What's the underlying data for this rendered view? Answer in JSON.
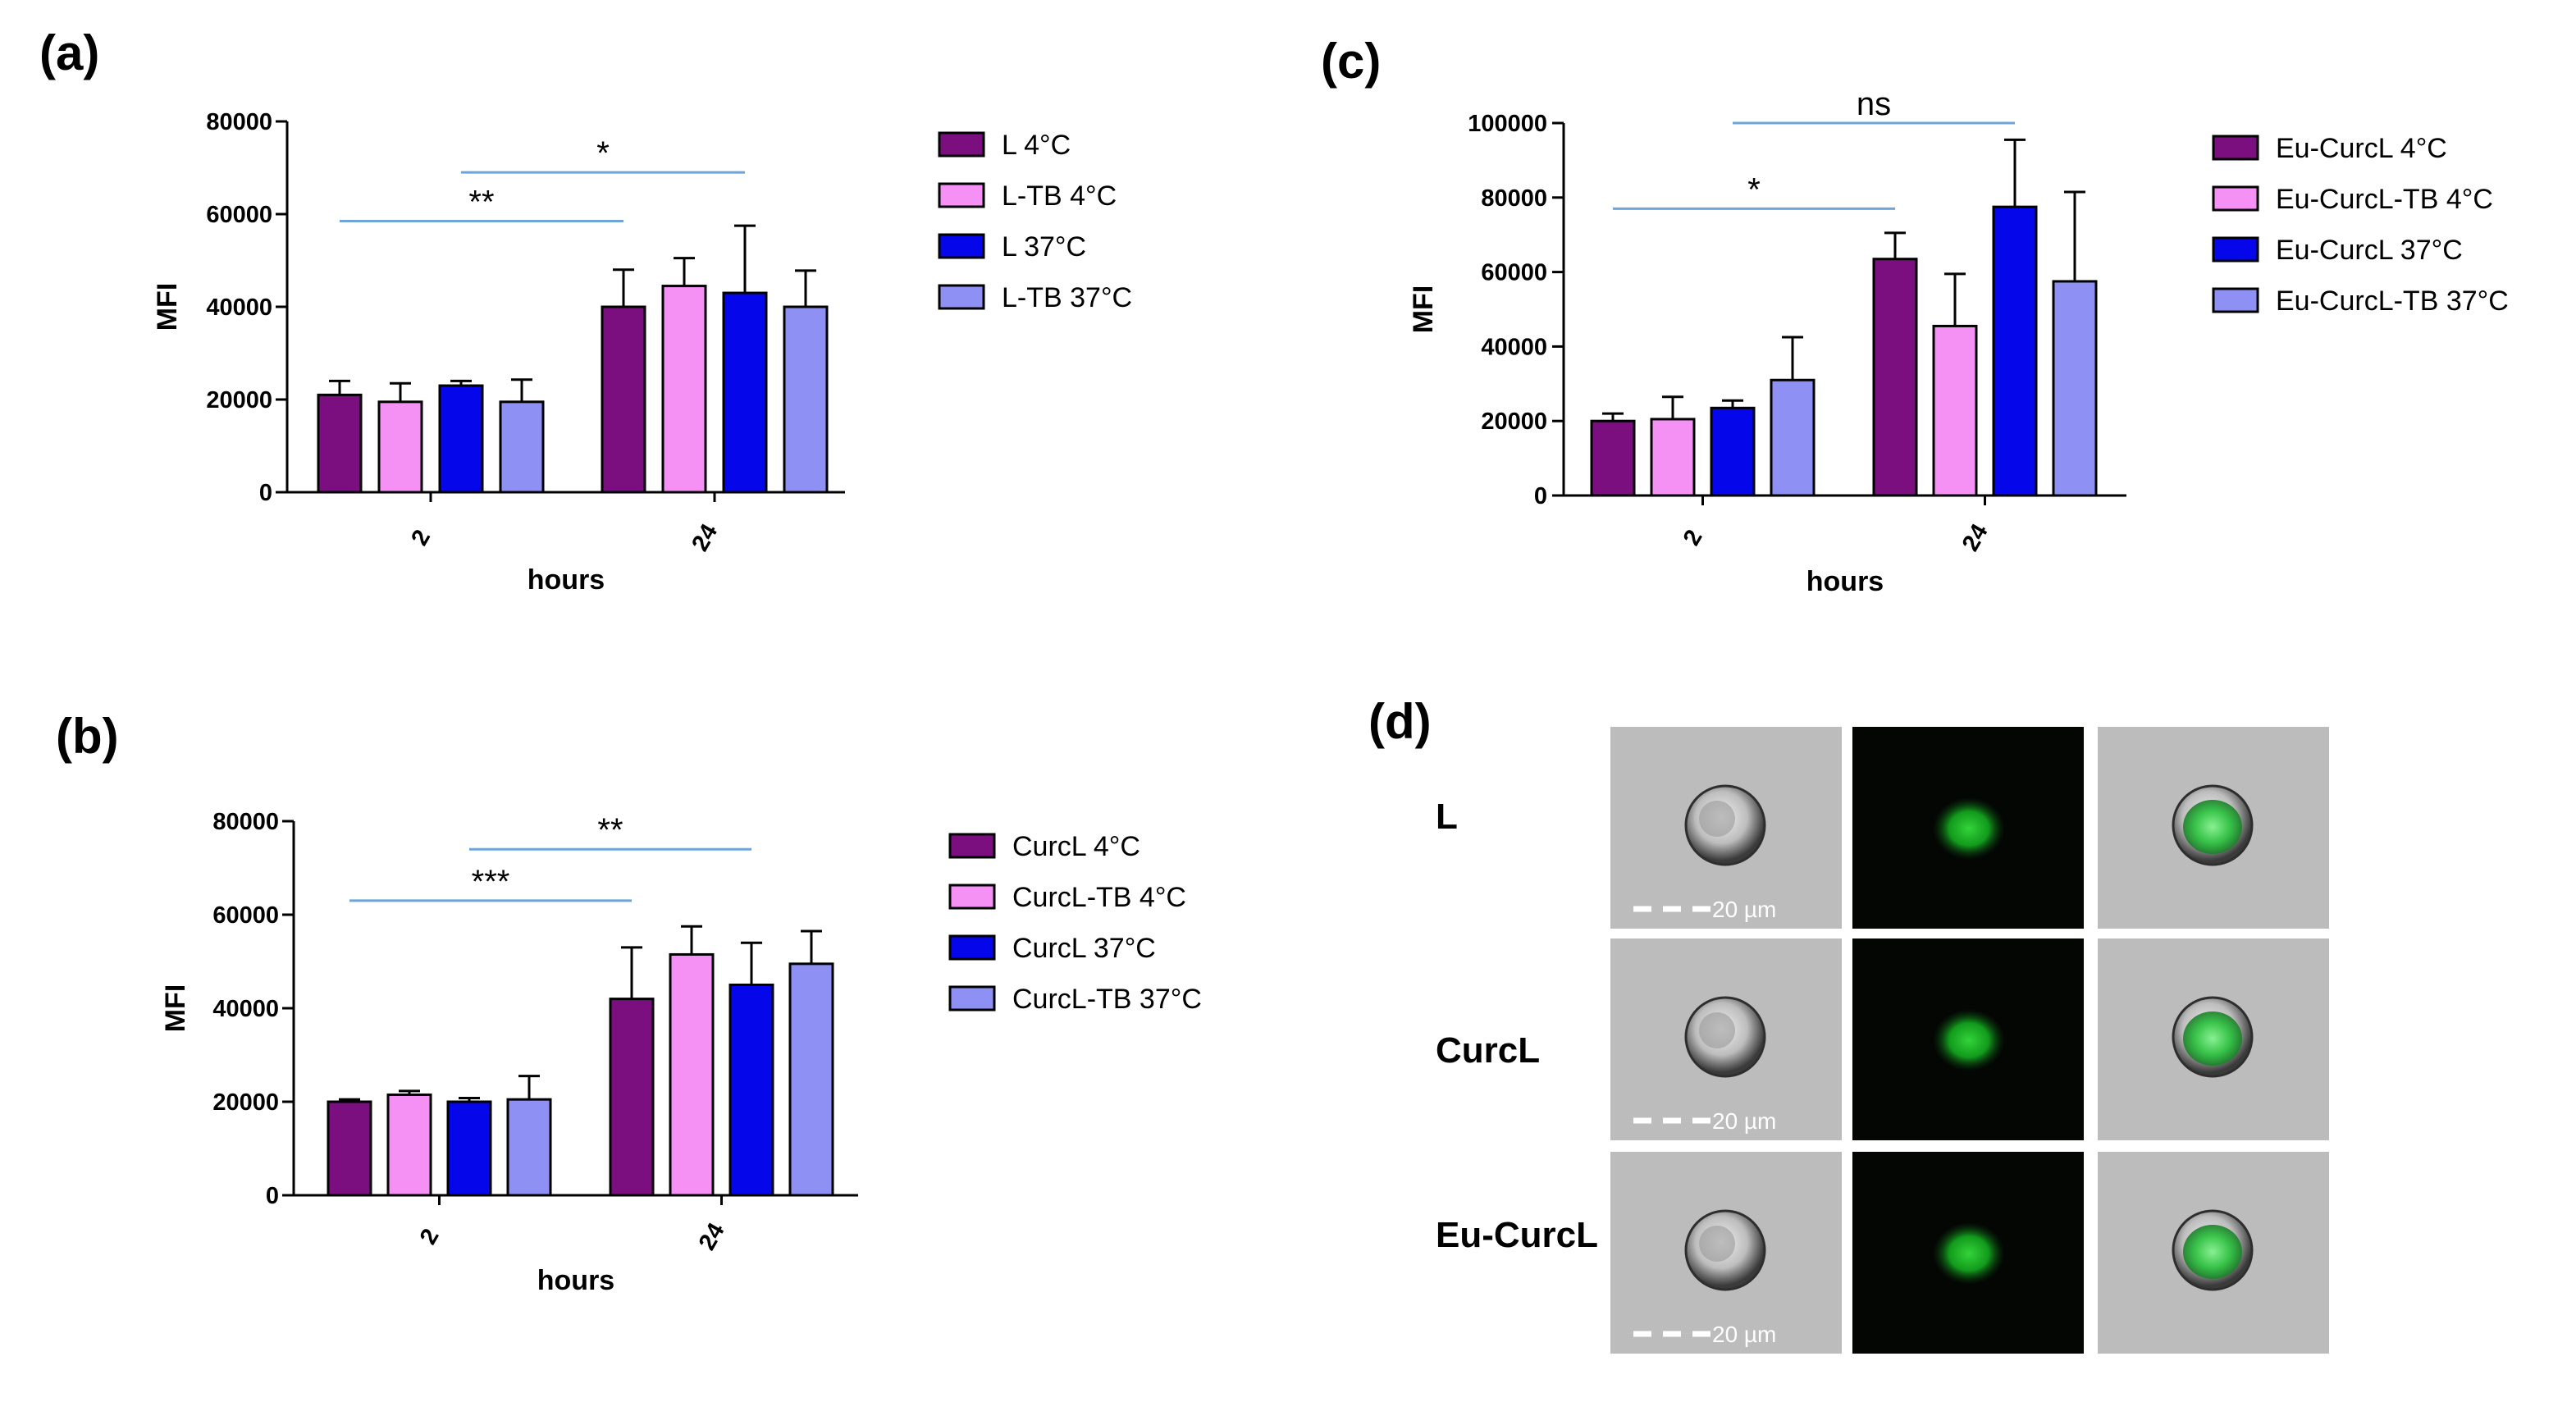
{
  "chart_data": [
    {
      "type": "bar",
      "panel": "(a)",
      "categories": [
        "2",
        "24"
      ],
      "xlabel": "hours",
      "ylabel": "MFI",
      "ylim": [
        0,
        80000
      ],
      "yticks": [
        "0",
        "20000",
        "40000",
        "60000",
        "80000"
      ],
      "series": [
        {
          "name": "L 4°C",
          "values": [
            21000,
            40000
          ],
          "errors": [
            3000,
            8000
          ],
          "color": "#7b0f7f"
        },
        {
          "name": "L-TB 4°C",
          "values": [
            19500,
            44500
          ],
          "errors": [
            4000,
            6000
          ],
          "color": "#f590f5"
        },
        {
          "name": "L 37°C",
          "values": [
            23000,
            43000
          ],
          "errors": [
            1000,
            14500
          ],
          "color": "#0606ea"
        },
        {
          "name": "L-TB 37°C",
          "values": [
            19500,
            40000
          ],
          "errors": [
            4800,
            7800
          ],
          "color": "#8f90f3"
        }
      ],
      "significance": [
        {
          "label": "**",
          "y": 58500,
          "from": "2-1",
          "to": "24-1"
        },
        {
          "label": "*",
          "y": 69000,
          "from": "2-3",
          "to": "24-3"
        }
      ]
    },
    {
      "type": "bar",
      "panel": "(b)",
      "categories": [
        "2",
        "24"
      ],
      "xlabel": "hours",
      "ylabel": "MFI",
      "ylim": [
        0,
        80000
      ],
      "yticks": [
        "0",
        "20000",
        "40000",
        "60000",
        "80000"
      ],
      "series": [
        {
          "name": "CurcL 4°C",
          "values": [
            20000,
            42000
          ],
          "errors": [
            500,
            11000
          ],
          "color": "#7b0f7f"
        },
        {
          "name": "CurcL-TB 4°C",
          "values": [
            21500,
            51500
          ],
          "errors": [
            800,
            6000
          ],
          "color": "#f590f5"
        },
        {
          "name": "CurcL 37°C",
          "values": [
            20000,
            45000
          ],
          "errors": [
            800,
            9000
          ],
          "color": "#0606ea"
        },
        {
          "name": "CurcL-TB 37°C",
          "values": [
            20500,
            49500
          ],
          "errors": [
            5000,
            7000
          ],
          "color": "#8f90f3"
        }
      ],
      "significance": [
        {
          "label": "***",
          "y": 63000,
          "from": "2-1",
          "to": "24-1"
        },
        {
          "label": "**",
          "y": 74000,
          "from": "2-3",
          "to": "24-3"
        }
      ]
    },
    {
      "type": "bar",
      "panel": "(c)",
      "categories": [
        "2",
        "24"
      ],
      "xlabel": "hours",
      "ylabel": "MFI",
      "ylim": [
        0,
        100000
      ],
      "yticks": [
        "0",
        "20000",
        "40000",
        "60000",
        "80000",
        "100000"
      ],
      "series": [
        {
          "name": "Eu-CurcL 4°C",
          "values": [
            20000,
            63500
          ],
          "errors": [
            2000,
            7000
          ],
          "color": "#7b0f7f"
        },
        {
          "name": "Eu-CurcL-TB 4°C",
          "values": [
            20500,
            45500
          ],
          "errors": [
            6000,
            14000
          ],
          "color": "#f590f5"
        },
        {
          "name": "Eu-CurcL 37°C",
          "values": [
            23500,
            77500
          ],
          "errors": [
            2000,
            18000
          ],
          "color": "#0606ea"
        },
        {
          "name": "Eu-CurcL-TB 37°C",
          "values": [
            31000,
            57500
          ],
          "errors": [
            11500,
            24000
          ],
          "color": "#8f90f3"
        }
      ],
      "significance": [
        {
          "label": "*",
          "y": 77000,
          "from": "2-1",
          "to": "24-1"
        },
        {
          "label": "ns",
          "y": 100000,
          "from": "2-3",
          "to": "24-3"
        }
      ]
    }
  ],
  "imaging": {
    "panel": "(d)",
    "rows": [
      "L",
      "CurcL",
      "Eu-CurcL"
    ],
    "scale_bar": "20 µm"
  }
}
